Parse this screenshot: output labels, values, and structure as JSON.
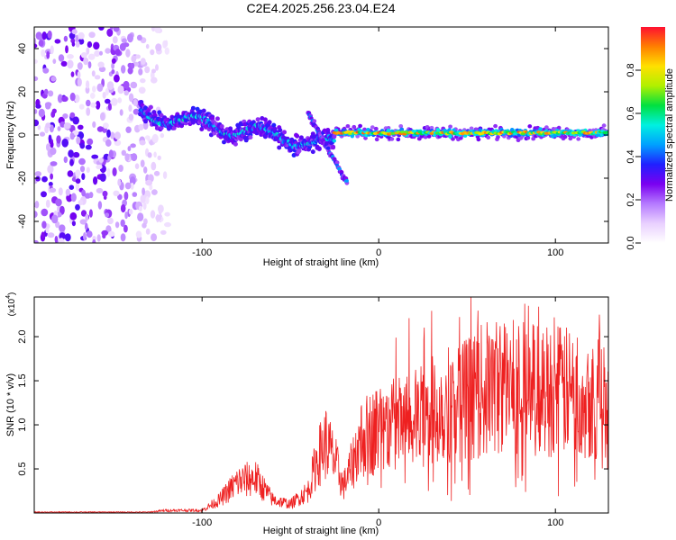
{
  "title": "C2E4.2025.256.23.04.E24",
  "colors": {
    "snr_line": "#ee2020",
    "axis": "#000000",
    "background": "#ffffff"
  },
  "chart_data": [
    {
      "type": "heatmap",
      "xlabel": "Height of straight line (km)",
      "ylabel": "Frequency (Hz)",
      "xlim": [
        -195,
        130
      ],
      "ylim": [
        -50,
        50
      ],
      "xticks": [
        -100,
        0,
        100
      ],
      "xtick_labels": [
        "-100",
        "0",
        "100"
      ],
      "yticks": [
        -40,
        -20,
        0,
        20,
        40
      ],
      "ytick_labels": [
        "-40",
        "-20",
        "0",
        "20",
        "40"
      ],
      "colorbar": {
        "label": "Normalized spectral amplitude",
        "range": [
          0,
          1
        ],
        "ticks": [
          0.0,
          0.2,
          0.4,
          0.6,
          0.8
        ],
        "tick_labels": [
          "0.0",
          "0.2",
          "0.4",
          "0.6",
          "0.8"
        ],
        "palette": [
          "#ffffff",
          "#e9d0ff",
          "#b57aff",
          "#7a00f0",
          "#2020ff",
          "#00a0ff",
          "#00f0e0",
          "#00e040",
          "#b0f000",
          "#ffe000",
          "#ff8000",
          "#ff1030"
        ]
      },
      "features": [
        {
          "name": "broadband noise",
          "x_range": [
            -195,
            -110
          ],
          "y_range": [
            -50,
            50
          ],
          "amplitude": 0.25
        },
        {
          "name": "main trace",
          "x_range": [
            -135,
            -25
          ],
          "start_freq": 10,
          "end_freq": -5,
          "amplitude": 0.45
        },
        {
          "name": "secondary branch",
          "x_range": [
            -40,
            -18
          ],
          "start_freq": 10,
          "end_freq": -22,
          "amplitude": 0.35
        },
        {
          "name": "carrier line",
          "x_range": [
            -25,
            130
          ],
          "freq": 1,
          "amplitude": 0.95
        }
      ]
    },
    {
      "type": "line",
      "xlabel": "Height of straight line (km)",
      "ylabel": "SNR (10 * v/v)",
      "y_multiplier": "(x10",
      "y_exponent": "4",
      "xlim": [
        -195,
        130
      ],
      "ylim": [
        0,
        2.45
      ],
      "xticks": [
        -100,
        0,
        100
      ],
      "xtick_labels": [
        "-100",
        "0",
        "100"
      ],
      "yticks": [
        0.5,
        1.0,
        1.5,
        2.0
      ],
      "ytick_labels": [
        "0.5",
        "1.0",
        "1.5",
        "2.0"
      ],
      "envelope": {
        "x": [
          -195,
          -130,
          -120,
          -100,
          -90,
          -80,
          -70,
          -60,
          -50,
          -40,
          -35,
          -30,
          -25,
          -20,
          -15,
          -10,
          0,
          10,
          20,
          30,
          40,
          50,
          60,
          70,
          80,
          90,
          100,
          110,
          120,
          130
        ],
        "y": [
          0.01,
          0.01,
          0.03,
          0.03,
          0.15,
          0.35,
          0.4,
          0.15,
          0.1,
          0.25,
          0.6,
          0.8,
          0.6,
          0.3,
          0.55,
          0.85,
          0.95,
          1.0,
          1.05,
          1.15,
          1.25,
          1.3,
          1.4,
          1.45,
          1.45,
          1.4,
          1.4,
          1.35,
          1.35,
          1.3
        ]
      }
    }
  ]
}
